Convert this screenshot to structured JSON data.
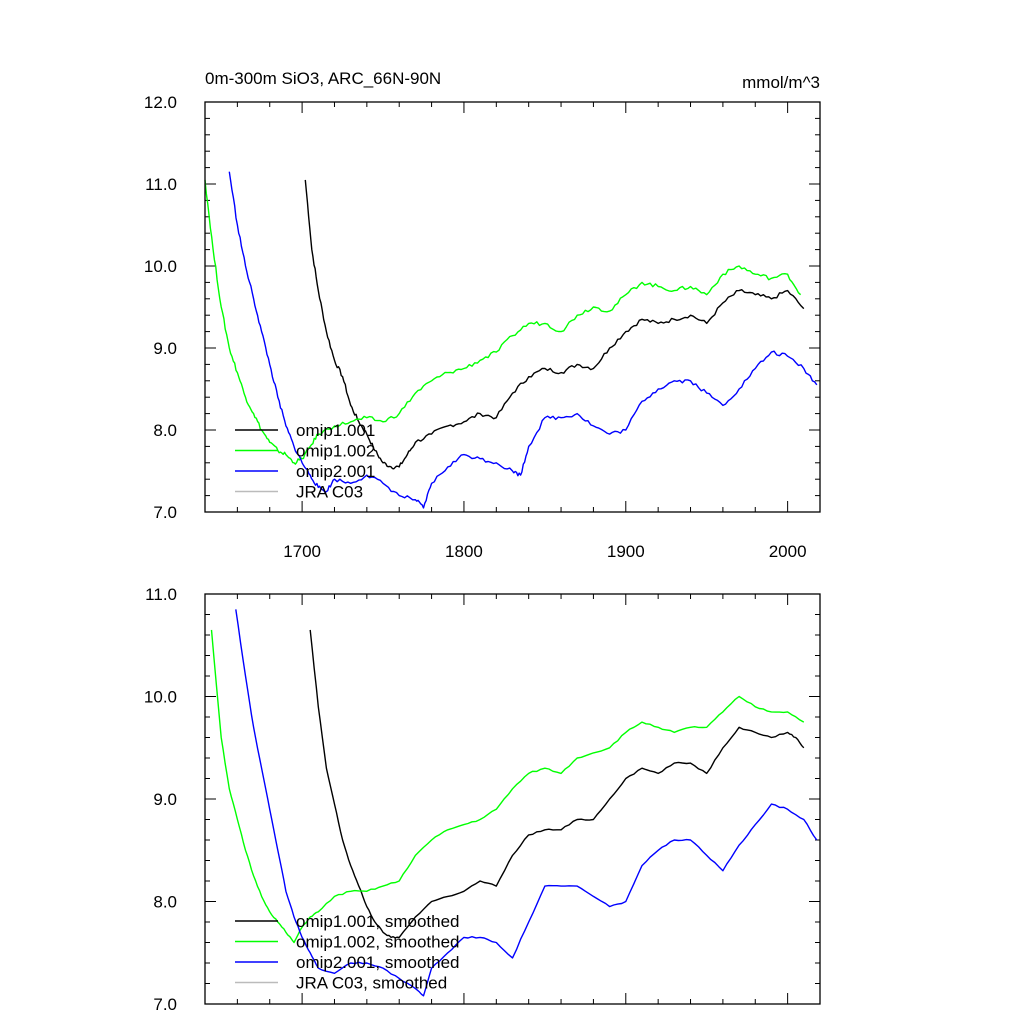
{
  "chart_data": [
    {
      "type": "line",
      "title": "0m-300m SiO3, ARC_66N-90N",
      "units": "mmol/m^3",
      "xlabel": "",
      "ylabel": "",
      "xlim": [
        1640,
        2020
      ],
      "ylim": [
        7.0,
        12.0
      ],
      "xticks": [
        1700,
        1800,
        1900,
        2000
      ],
      "xtick_labels": [
        "1700",
        "1800",
        "1900",
        "2000"
      ],
      "yticks": [
        7,
        8,
        9,
        10,
        11,
        12
      ],
      "ytick_labels": [
        "7.0",
        "8.0",
        "9.0",
        "10.0",
        "11.0",
        "12.0"
      ],
      "grid": false,
      "legend_position": "bottom-left",
      "series": [
        {
          "name": "omip1.001",
          "color": "#000000",
          "x": [
            1702,
            1706,
            1710,
            1715,
            1720,
            1725,
            1730,
            1735,
            1740,
            1745,
            1750,
            1755,
            1760,
            1765,
            1770,
            1780,
            1790,
            1800,
            1810,
            1820,
            1830,
            1840,
            1850,
            1860,
            1870,
            1880,
            1890,
            1900,
            1910,
            1920,
            1930,
            1940,
            1950,
            1960,
            1970,
            1980,
            1990,
            2000,
            2010
          ],
          "y": [
            11.05,
            10.2,
            9.7,
            9.2,
            8.85,
            8.65,
            8.3,
            8.1,
            7.95,
            7.75,
            7.6,
            7.55,
            7.55,
            7.7,
            7.85,
            7.95,
            8.05,
            8.1,
            8.2,
            8.15,
            8.45,
            8.65,
            8.75,
            8.7,
            8.8,
            8.75,
            9.0,
            9.2,
            9.35,
            9.3,
            9.35,
            9.4,
            9.3,
            9.55,
            9.7,
            9.65,
            9.6,
            9.7,
            9.48
          ]
        },
        {
          "name": "omip1.002",
          "color": "#00ff00",
          "x": [
            1640,
            1645,
            1650,
            1655,
            1660,
            1665,
            1670,
            1675,
            1680,
            1685,
            1690,
            1695,
            1700,
            1705,
            1710,
            1720,
            1730,
            1740,
            1750,
            1760,
            1770,
            1780,
            1790,
            1800,
            1810,
            1820,
            1830,
            1840,
            1850,
            1860,
            1870,
            1880,
            1890,
            1900,
            1910,
            1920,
            1930,
            1940,
            1950,
            1960,
            1970,
            1980,
            1990,
            2000,
            2008
          ],
          "y": [
            11.05,
            10.2,
            9.5,
            9.0,
            8.7,
            8.4,
            8.2,
            8.0,
            7.85,
            7.75,
            7.7,
            7.6,
            7.65,
            7.8,
            7.95,
            8.05,
            8.1,
            8.15,
            8.1,
            8.2,
            8.45,
            8.6,
            8.7,
            8.75,
            8.85,
            8.95,
            9.15,
            9.3,
            9.3,
            9.2,
            9.4,
            9.5,
            9.45,
            9.65,
            9.8,
            9.75,
            9.7,
            9.75,
            9.65,
            9.9,
            10.0,
            9.9,
            9.85,
            9.9,
            9.65
          ]
        },
        {
          "name": "omip2.001",
          "color": "#0000ff",
          "x": [
            1655,
            1660,
            1665,
            1670,
            1675,
            1680,
            1685,
            1690,
            1695,
            1700,
            1705,
            1710,
            1715,
            1720,
            1730,
            1740,
            1750,
            1760,
            1770,
            1775,
            1780,
            1790,
            1800,
            1810,
            1820,
            1830,
            1835,
            1840,
            1850,
            1860,
            1870,
            1880,
            1890,
            1900,
            1910,
            1920,
            1930,
            1940,
            1950,
            1960,
            1970,
            1980,
            1990,
            2000,
            2010,
            2018
          ],
          "y": [
            11.15,
            10.5,
            10.0,
            9.6,
            9.2,
            8.8,
            8.4,
            8.05,
            7.8,
            7.6,
            7.45,
            7.3,
            7.25,
            7.4,
            7.35,
            7.45,
            7.35,
            7.2,
            7.15,
            7.05,
            7.35,
            7.55,
            7.7,
            7.65,
            7.6,
            7.5,
            7.45,
            7.8,
            8.15,
            8.15,
            8.2,
            8.05,
            7.95,
            8.0,
            8.35,
            8.5,
            8.6,
            8.6,
            8.45,
            8.3,
            8.5,
            8.75,
            8.95,
            8.9,
            8.75,
            8.55
          ]
        },
        {
          "name": "JRA C03",
          "color": "#bbbbbb",
          "x": [],
          "y": []
        }
      ]
    },
    {
      "type": "line",
      "title": "",
      "units": "",
      "xlabel": "",
      "ylabel": "",
      "xlim": [
        1640,
        2020
      ],
      "ylim": [
        7.0,
        11.0
      ],
      "xticks": [
        1700,
        1800,
        1900,
        2000
      ],
      "xtick_labels": [],
      "yticks": [
        7,
        8,
        9,
        10,
        11
      ],
      "ytick_labels": [
        "7.0",
        "8.0",
        "9.0",
        "10.0",
        "11.0"
      ],
      "grid": false,
      "legend_position": "bottom-left",
      "series": [
        {
          "name": "omip1.001, smoothed",
          "color": "#000000",
          "x": [
            1705,
            1710,
            1715,
            1720,
            1725,
            1730,
            1735,
            1740,
            1745,
            1750,
            1755,
            1760,
            1770,
            1780,
            1790,
            1800,
            1810,
            1820,
            1830,
            1840,
            1850,
            1860,
            1870,
            1880,
            1890,
            1900,
            1910,
            1920,
            1930,
            1940,
            1950,
            1960,
            1970,
            1980,
            1990,
            2000,
            2005,
            2010
          ],
          "y": [
            10.65,
            9.9,
            9.3,
            8.95,
            8.6,
            8.35,
            8.15,
            7.95,
            7.8,
            7.7,
            7.65,
            7.65,
            7.85,
            8.0,
            8.05,
            8.1,
            8.2,
            8.15,
            8.45,
            8.65,
            8.7,
            8.7,
            8.8,
            8.8,
            9.0,
            9.2,
            9.3,
            9.25,
            9.35,
            9.35,
            9.25,
            9.5,
            9.7,
            9.65,
            9.6,
            9.65,
            9.6,
            9.5
          ]
        },
        {
          "name": "omip1.002, smoothed",
          "color": "#00ff00",
          "x": [
            1644,
            1650,
            1655,
            1660,
            1665,
            1670,
            1675,
            1680,
            1685,
            1690,
            1695,
            1700,
            1705,
            1710,
            1720,
            1730,
            1740,
            1750,
            1760,
            1770,
            1780,
            1790,
            1800,
            1810,
            1820,
            1830,
            1840,
            1850,
            1860,
            1870,
            1880,
            1890,
            1900,
            1910,
            1920,
            1930,
            1940,
            1950,
            1960,
            1970,
            1980,
            1990,
            2000,
            2010
          ],
          "y": [
            10.65,
            9.6,
            9.1,
            8.8,
            8.5,
            8.25,
            8.05,
            7.9,
            7.8,
            7.7,
            7.6,
            7.75,
            7.85,
            7.9,
            8.05,
            8.1,
            8.1,
            8.15,
            8.2,
            8.45,
            8.6,
            8.7,
            8.75,
            8.8,
            8.9,
            9.1,
            9.25,
            9.3,
            9.25,
            9.4,
            9.45,
            9.5,
            9.65,
            9.75,
            9.7,
            9.65,
            9.7,
            9.7,
            9.85,
            10.0,
            9.9,
            9.85,
            9.85,
            9.75
          ]
        },
        {
          "name": "omip2.001, smoothed",
          "color": "#0000ff",
          "x": [
            1659,
            1665,
            1670,
            1675,
            1680,
            1685,
            1690,
            1695,
            1700,
            1705,
            1710,
            1720,
            1730,
            1740,
            1750,
            1760,
            1770,
            1775,
            1780,
            1790,
            1800,
            1810,
            1820,
            1830,
            1840,
            1850,
            1860,
            1870,
            1880,
            1890,
            1900,
            1910,
            1920,
            1930,
            1940,
            1950,
            1960,
            1970,
            1980,
            1990,
            2000,
            2010,
            2018
          ],
          "y": [
            10.85,
            10.2,
            9.7,
            9.3,
            8.9,
            8.5,
            8.1,
            7.85,
            7.65,
            7.5,
            7.35,
            7.3,
            7.4,
            7.4,
            7.35,
            7.25,
            7.15,
            7.08,
            7.35,
            7.5,
            7.65,
            7.65,
            7.6,
            7.45,
            7.8,
            8.15,
            8.15,
            8.15,
            8.05,
            7.95,
            8.0,
            8.35,
            8.5,
            8.6,
            8.6,
            8.45,
            8.3,
            8.55,
            8.75,
            8.95,
            8.9,
            8.8,
            8.6
          ]
        },
        {
          "name": "JRA C03, smoothed",
          "color": "#bbbbbb",
          "x": [],
          "y": []
        }
      ]
    }
  ]
}
